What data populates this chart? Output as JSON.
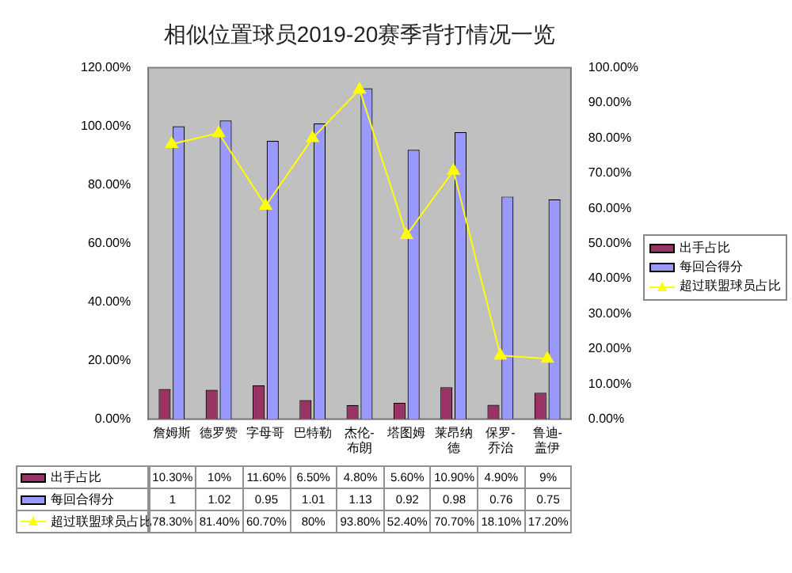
{
  "chart_data": {
    "type": "bar",
    "title": "相似位置球员2019-20赛季背打情况一览",
    "categories": [
      "詹姆斯",
      "德罗赞",
      "字母哥",
      "巴特勒",
      "杰伦-布朗",
      "塔图姆",
      "莱昂纳德",
      "保罗-乔治",
      "鲁迪-盖伊"
    ],
    "series": [
      {
        "name": "出手占比",
        "color": "#993366",
        "values": [
          0.103,
          0.1,
          0.116,
          0.065,
          0.048,
          0.056,
          0.109,
          0.049,
          0.09
        ],
        "value_labels": [
          "10.30%",
          "10%",
          "11.60%",
          "6.50%",
          "4.80%",
          "5.60%",
          "10.90%",
          "4.90%",
          "9%"
        ]
      },
      {
        "name": "每回合得分",
        "color": "#9999ff",
        "values": [
          1,
          1.02,
          0.95,
          1.01,
          1.13,
          0.92,
          0.98,
          0.76,
          0.75
        ],
        "value_labels": [
          "1",
          "1.02",
          "0.95",
          "1.01",
          "1.13",
          "0.92",
          "0.98",
          "0.76",
          "0.75"
        ]
      },
      {
        "name": "超过联盟球员占比",
        "type": "line",
        "axis": "y2",
        "color": "#ffff00",
        "marker": "triangle",
        "values": [
          0.783,
          0.814,
          0.607,
          0.8,
          0.938,
          0.524,
          0.707,
          0.181,
          0.172
        ],
        "value_labels": [
          "78.30%",
          "81.40%",
          "60.70%",
          "80%",
          "93.80%",
          "52.40%",
          "70.70%",
          "18.10%",
          "17.20%"
        ]
      }
    ],
    "ylim": [
      0,
      1.2
    ],
    "yticks": [
      {
        "value": 0,
        "label": "0.00%"
      },
      {
        "value": 0.2,
        "label": "20.00%"
      },
      {
        "value": 0.4,
        "label": "40.00%"
      },
      {
        "value": 0.6,
        "label": "60.00%"
      },
      {
        "value": 0.8,
        "label": "80.00%"
      },
      {
        "value": 1,
        "label": "100.00%"
      },
      {
        "value": 1.2,
        "label": "120.00%"
      }
    ],
    "y2lim": [
      0,
      1
    ],
    "y2ticks": [
      {
        "value": 0,
        "label": "0.00%"
      },
      {
        "value": 0.1,
        "label": "10.00%"
      },
      {
        "value": 0.2,
        "label": "20.00%"
      },
      {
        "value": 0.3,
        "label": "30.00%"
      },
      {
        "value": 0.4,
        "label": "40.00%"
      },
      {
        "value": 0.5,
        "label": "50.00%"
      },
      {
        "value": 0.6,
        "label": "60.00%"
      },
      {
        "value": 0.7,
        "label": "70.00%"
      },
      {
        "value": 0.8,
        "label": "80.00%"
      },
      {
        "value": 0.9,
        "label": "90.00%"
      },
      {
        "value": 1,
        "label": "100.00%"
      }
    ],
    "grid": false,
    "legend": "right"
  }
}
